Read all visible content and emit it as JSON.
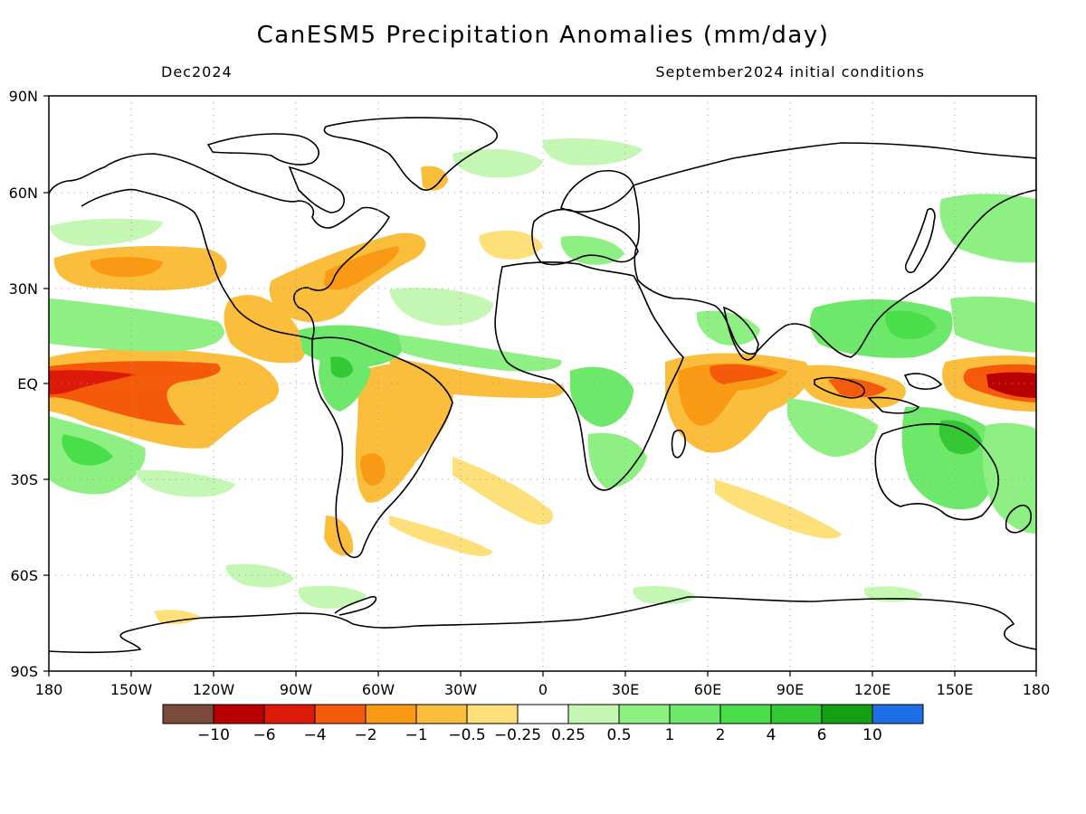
{
  "title": "CanESM5 Precipitation Anomalies (mm/day)",
  "subtitle_left": "Dec2024",
  "subtitle_right": "September2024 initial conditions",
  "axes": {
    "lat_labels": [
      "90N",
      "60N",
      "30N",
      "EQ",
      "30S",
      "60S",
      "90S"
    ],
    "lon_labels": [
      "180",
      "150W",
      "120W",
      "90W",
      "60W",
      "30W",
      "0",
      "30E",
      "60E",
      "90E",
      "120E",
      "150E",
      "180"
    ],
    "grid": "dotted"
  },
  "colorbar": {
    "colors": [
      "#7a4a3a",
      "#b80000",
      "#dd1a0a",
      "#f55a0a",
      "#fa9a14",
      "#fbbe3c",
      "#fde07a",
      "#ffffff",
      "#c4f7b4",
      "#8eef82",
      "#6ee86a",
      "#4ade4a",
      "#34c834",
      "#14a014",
      "#1e6ee8"
    ],
    "labels": [
      "−10",
      "−6",
      "−4",
      "−2",
      "−1",
      "−0.5",
      "−0.25",
      "0.25",
      "0.5",
      "1",
      "2",
      "4",
      "6",
      "10"
    ]
  },
  "map": {
    "palette": {
      "land_line": "#000000",
      "dry_light": "#fde07a",
      "dry_mid": "#fbbe3c",
      "dry_strong": "#fa9a14",
      "dry_deep": "#f55a0a",
      "dry_extreme": "#dd1a0a",
      "dry_max": "#b80000",
      "wet_light": "#c4f7b4",
      "wet_mid": "#8eef82",
      "wet_strong": "#6ee86a",
      "wet_deep": "#4ade4a",
      "wet_max": "#34c834"
    }
  }
}
